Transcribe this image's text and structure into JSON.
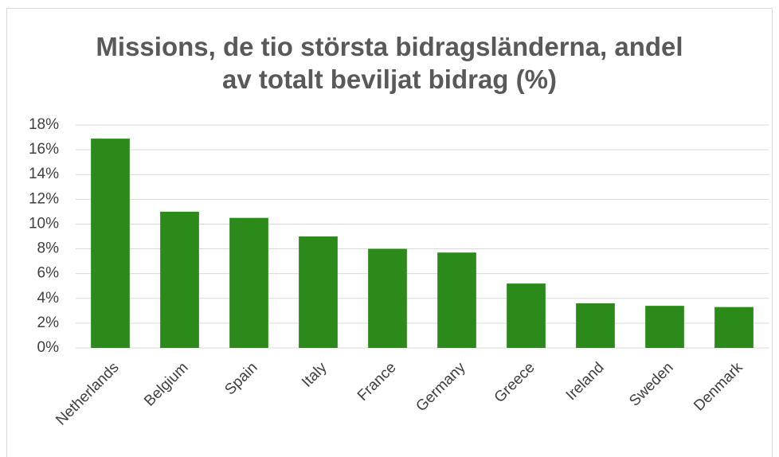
{
  "chart_data": {
    "type": "bar",
    "title": "Missions, de tio största bidragsländerna, andel av totalt beviljat bidrag (%)",
    "categories": [
      "Netherlands",
      "Belgium",
      "Spain",
      "Italy",
      "France",
      "Germany",
      "Greece",
      "Ireland",
      "Sweden",
      "Denmark"
    ],
    "values": [
      16.9,
      11.0,
      10.5,
      9.0,
      8.0,
      7.7,
      5.2,
      3.6,
      3.4,
      3.3
    ],
    "color": "#2b8a1a",
    "ylim": [
      0,
      18
    ],
    "yticks": [
      {
        "value": 0,
        "label": "0%"
      },
      {
        "value": 2,
        "label": "2%"
      },
      {
        "value": 4,
        "label": "4%"
      },
      {
        "value": 6,
        "label": "6%"
      },
      {
        "value": 8,
        "label": "8%"
      },
      {
        "value": 10,
        "label": "10%"
      },
      {
        "value": 12,
        "label": "12%"
      },
      {
        "value": 14,
        "label": "14%"
      },
      {
        "value": 16,
        "label": "16%"
      },
      {
        "value": 18,
        "label": "18%"
      }
    ],
    "grid": true
  }
}
